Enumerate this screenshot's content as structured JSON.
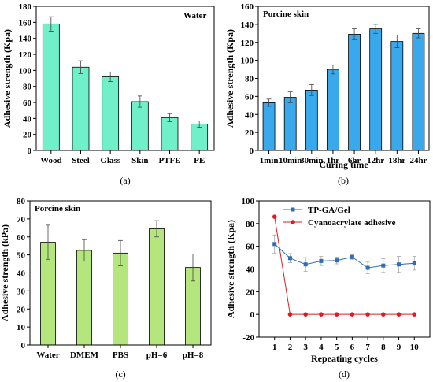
{
  "colors": {
    "panel_a_bar": "#6ff0c8",
    "panel_b_bar": "#39a9ee",
    "panel_c_bar": "#b5e67d",
    "series_1": "#2f6db5",
    "series_2": "#d62020"
  },
  "chart_data": [
    {
      "type": "bar",
      "caption": "(a)",
      "inset_label": "Water",
      "categories": [
        "Wood",
        "Steel",
        "Glass",
        "Skin",
        "PTFE",
        "PE"
      ],
      "values": [
        158,
        104,
        92,
        61,
        41,
        33
      ],
      "errors": [
        9,
        8,
        6,
        7,
        5,
        4
      ],
      "xlabel": "",
      "ylabel": "Adhesive strength (Kpa)",
      "ylim": [
        0,
        180
      ],
      "yticks": [
        0,
        20,
        40,
        60,
        80,
        100,
        120,
        140,
        160,
        180
      ],
      "grid": false
    },
    {
      "type": "bar",
      "caption": "(b)",
      "inset_label": "Porcine skin",
      "categories": [
        "1min",
        "10min",
        "30min",
        "1hr",
        "6hr",
        "12hr",
        "18hr",
        "24hr"
      ],
      "values": [
        53,
        59,
        67,
        90,
        129,
        135,
        121,
        130
      ],
      "errors": [
        4,
        6,
        6,
        5,
        6,
        5,
        7,
        5
      ],
      "xlabel": "Curing time",
      "ylabel": "Adhesive strength (Kpa)",
      "ylim": [
        0,
        160
      ],
      "yticks": [
        0,
        20,
        40,
        60,
        80,
        100,
        120,
        140,
        160
      ],
      "grid": false
    },
    {
      "type": "bar",
      "caption": "(c)",
      "inset_label": "Porcine skin",
      "categories": [
        "Water",
        "DMEM",
        "PBS",
        "pH=6",
        "pH=8"
      ],
      "values": [
        57,
        52.5,
        51,
        64.5,
        43
      ],
      "errors": [
        9.5,
        6,
        7,
        4.5,
        7.5
      ],
      "xlabel": "",
      "ylabel": "Adhesive strength (kPa)",
      "ylim": [
        0,
        80
      ],
      "yticks": [
        0,
        10,
        20,
        30,
        40,
        50,
        60,
        70,
        80
      ],
      "grid": false
    },
    {
      "type": "line",
      "caption": "(d)",
      "x": [
        1,
        2,
        3,
        4,
        5,
        6,
        7,
        8,
        9,
        10
      ],
      "xticks": [
        1,
        2,
        3,
        4,
        5,
        6,
        7,
        8,
        9,
        10
      ],
      "series": [
        {
          "name": "TP-GA/Gel",
          "values": [
            62,
            49.5,
            44,
            47,
            47.5,
            50.5,
            41,
            43,
            44,
            45
          ],
          "errors": [
            8,
            4,
            6,
            4,
            3,
            2,
            5,
            6,
            7,
            6
          ],
          "marker": "square"
        },
        {
          "name": "Cyanoacrylate adhesive",
          "values": [
            86,
            0,
            0,
            0,
            0,
            0,
            0,
            0,
            0,
            0
          ],
          "errors": [
            0,
            0,
            0,
            0,
            0,
            0,
            0,
            0,
            0,
            0
          ],
          "marker": "circle"
        }
      ],
      "xlabel": "Repeating cycles",
      "ylabel": "Adhesive strength (Kpa)",
      "xlim": [
        0,
        11
      ],
      "ylim": [
        -20,
        100
      ],
      "yticks": [
        -20,
        0,
        20,
        40,
        60,
        80,
        100
      ],
      "legend": "top-right",
      "grid": false
    }
  ]
}
